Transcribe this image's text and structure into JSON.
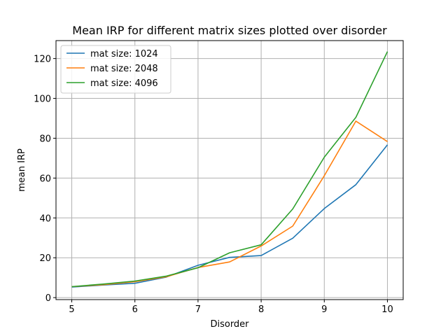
{
  "chart_data": {
    "type": "line",
    "title": "Mean IRP for different matrix sizes plotted over disorder",
    "xlabel": "Disorder",
    "ylabel": "mean IRP",
    "xlim": [
      4.75,
      10.25
    ],
    "ylim": [
      -1,
      129
    ],
    "xticks": [
      5,
      6,
      7,
      8,
      9,
      10
    ],
    "yticks": [
      0,
      20,
      40,
      60,
      80,
      100,
      120
    ],
    "grid": true,
    "legend_position": "top-left",
    "x": [
      5,
      5.5,
      6,
      6.5,
      7,
      7.5,
      8,
      8.5,
      9,
      9.5,
      10
    ],
    "series": [
      {
        "name": "mat size: 1024",
        "color": "#1f77b4",
        "values": [
          5.3,
          6.3,
          7.2,
          10.3,
          16.2,
          20.2,
          21.1,
          29.8,
          44.7,
          56.7,
          76.7
        ]
      },
      {
        "name": "mat size: 2048",
        "color": "#ff7f0e",
        "values": [
          5.5,
          6.5,
          8.0,
          10.5,
          15.1,
          17.9,
          25.9,
          35.9,
          61.2,
          88.6,
          78.3
        ]
      },
      {
        "name": "mat size: 4096",
        "color": "#2ca02c",
        "values": [
          5.5,
          6.8,
          8.3,
          10.8,
          15.0,
          22.5,
          26.5,
          44.5,
          70.5,
          90.5,
          123.5
        ]
      }
    ]
  }
}
